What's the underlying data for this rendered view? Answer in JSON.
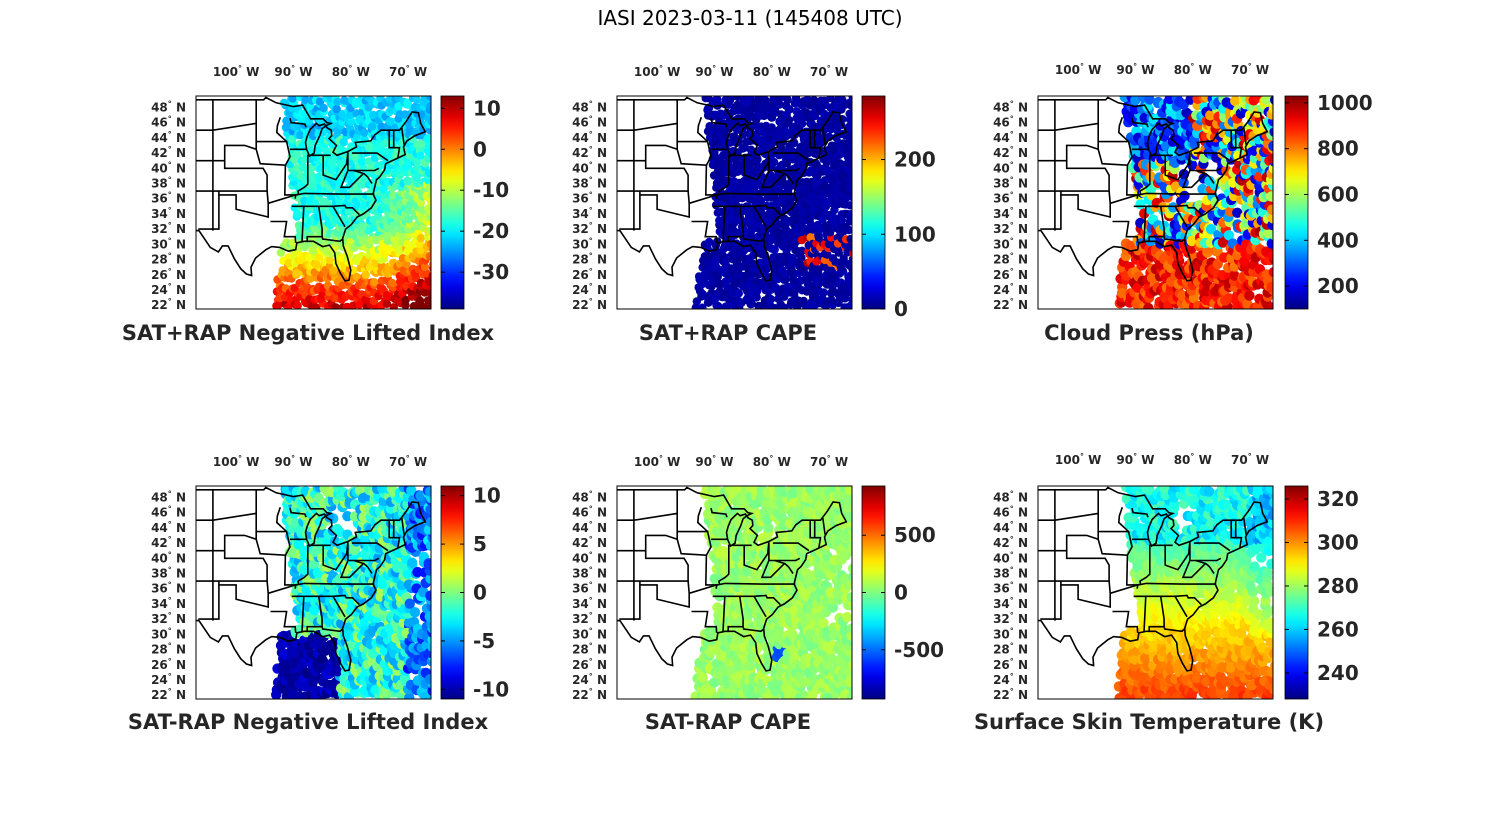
{
  "figure": {
    "title": "IASI 2023-03-11 (145408 UTC)"
  },
  "lon_ticks": [
    {
      "deg": "100",
      "hemi": "W"
    },
    {
      "deg": "90",
      "hemi": "W"
    },
    {
      "deg": "80",
      "hemi": "W"
    },
    {
      "deg": "70",
      "hemi": "W"
    }
  ],
  "lat_ticks": [
    {
      "deg": "48",
      "hemi": "N"
    },
    {
      "deg": "46",
      "hemi": "N"
    },
    {
      "deg": "44",
      "hemi": "N"
    },
    {
      "deg": "42",
      "hemi": "N"
    },
    {
      "deg": "40",
      "hemi": "N"
    },
    {
      "deg": "38",
      "hemi": "N"
    },
    {
      "deg": "36",
      "hemi": "N"
    },
    {
      "deg": "34",
      "hemi": "N"
    },
    {
      "deg": "32",
      "hemi": "N"
    },
    {
      "deg": "30",
      "hemi": "N"
    },
    {
      "deg": "28",
      "hemi": "N"
    },
    {
      "deg": "26",
      "hemi": "N"
    },
    {
      "deg": "24",
      "hemi": "N"
    },
    {
      "deg": "22",
      "hemi": "N"
    }
  ],
  "colormap": "jet",
  "panels": [
    {
      "id": "sat-rap-plus-nli",
      "title": "SAT+RAP Negative Lifted Index",
      "colorbar": {
        "min": -39,
        "max": 13,
        "ticks": [
          "10",
          "0",
          "-10",
          "-20",
          "-30"
        ],
        "tick_values": [
          10,
          0,
          -10,
          -20,
          -30
        ]
      },
      "field": "nli_plus",
      "swath": "full"
    },
    {
      "id": "sat-rap-plus-cape",
      "title": "SAT+RAP CAPE",
      "colorbar": {
        "min": 0,
        "max": 285,
        "ticks": [
          "200",
          "100",
          "0"
        ],
        "tick_values": [
          200,
          100,
          0
        ]
      },
      "field": "cape_plus",
      "swath": "full"
    },
    {
      "id": "cloud-press",
      "title": "Cloud Press (hPa)",
      "colorbar": {
        "min": 100,
        "max": 1030,
        "ticks": [
          "1000",
          "800",
          "600",
          "400",
          "200"
        ],
        "tick_values": [
          1000,
          800,
          600,
          400,
          200
        ]
      },
      "field": "cloud_press",
      "swath": "cloudy"
    },
    {
      "id": "sat-minus-rap-nli",
      "title": "SAT-RAP Negative Lifted Index",
      "colorbar": {
        "min": -11,
        "max": 11,
        "ticks": [
          "10",
          "5",
          "0",
          "-5",
          "-10"
        ],
        "tick_values": [
          10,
          5,
          0,
          -5,
          -10
        ]
      },
      "field": "nli_minus",
      "swath": "clear"
    },
    {
      "id": "sat-minus-rap-cape",
      "title": "SAT-RAP CAPE",
      "colorbar": {
        "min": -930,
        "max": 930,
        "ticks": [
          "500",
          "0",
          "-500"
        ],
        "tick_values": [
          500,
          0,
          -500
        ]
      },
      "field": "cape_minus",
      "swath": "clear"
    },
    {
      "id": "skin-temp",
      "title": "Surface Skin Temperature (K)",
      "colorbar": {
        "min": 228,
        "max": 326,
        "ticks": [
          "320",
          "300",
          "280",
          "260",
          "240"
        ],
        "tick_values": [
          320,
          300,
          280,
          260,
          240
        ]
      },
      "field": "skin_temp",
      "swath": "clear"
    }
  ]
}
